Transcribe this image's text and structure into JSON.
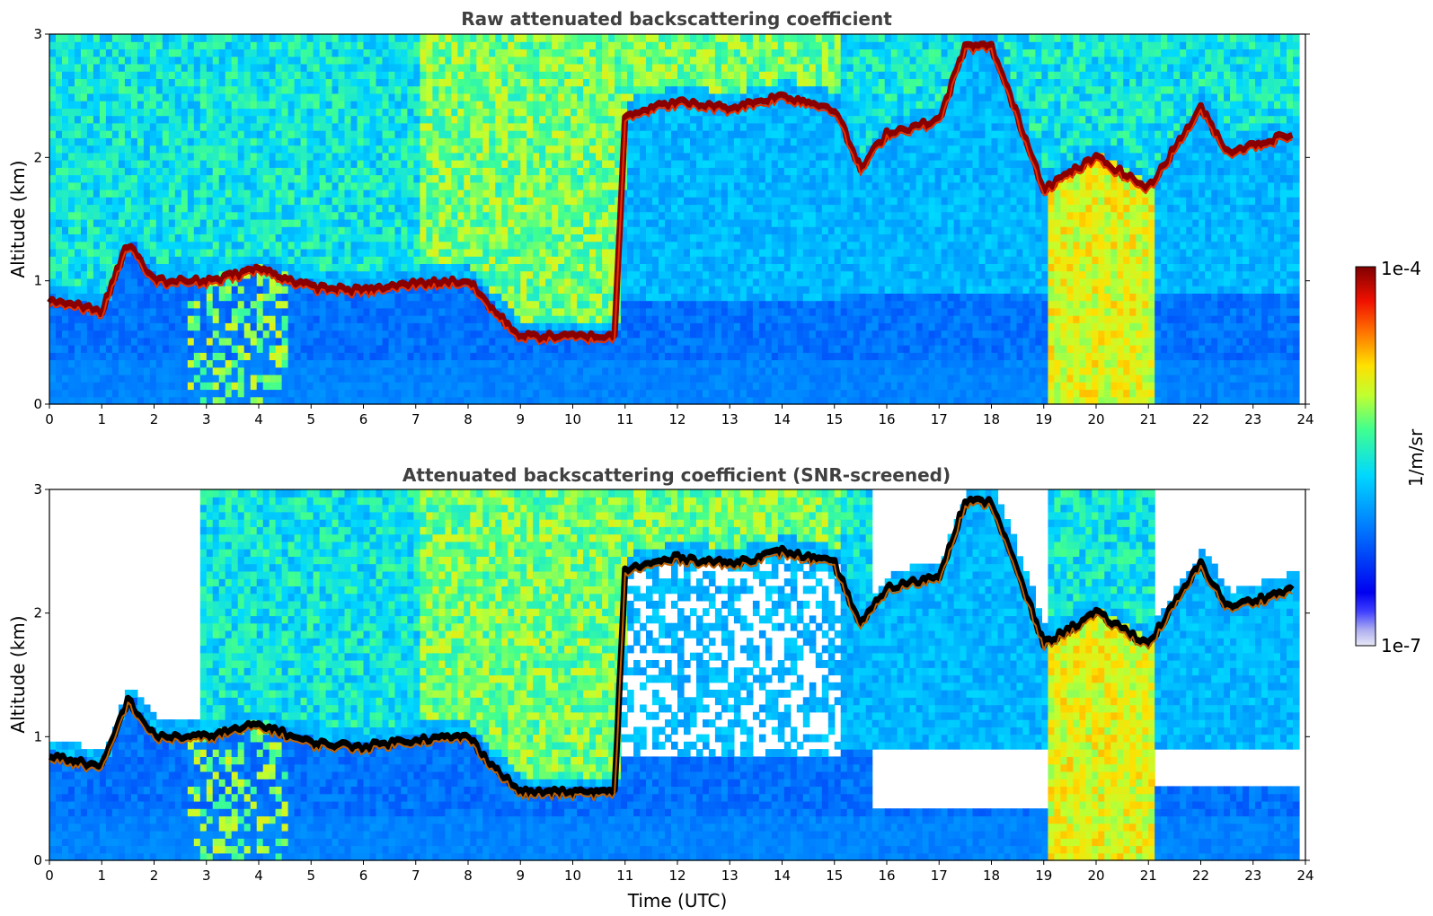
{
  "chart_data": [
    {
      "type": "heatmap",
      "title": "Raw attenuated backscattering coefficient",
      "xlabel": "",
      "ylabel": "Altitude (km)",
      "xlim": [
        0,
        24
      ],
      "ylim": [
        0,
        3
      ],
      "xticks": [
        "0",
        "1",
        "2",
        "3",
        "4",
        "5",
        "6",
        "7",
        "8",
        "9",
        "10",
        "11",
        "12",
        "13",
        "14",
        "15",
        "16",
        "17",
        "18",
        "19",
        "20",
        "21",
        "22",
        "23",
        "24"
      ],
      "yticks": [
        "0",
        "1",
        "2",
        "3"
      ],
      "screened": false,
      "layer_top": {
        "time_utc": [
          0,
          1,
          1.5,
          2,
          3,
          4,
          5,
          6,
          7,
          8,
          8.5,
          9,
          10,
          10.8,
          11,
          12,
          13,
          14,
          15,
          15.5,
          16,
          17,
          17.5,
          18,
          19,
          20,
          21,
          22,
          22.5,
          23,
          23.8
        ],
        "altitude_km": [
          0.85,
          0.75,
          1.3,
          1.0,
          1.0,
          1.1,
          0.95,
          0.92,
          0.98,
          1.0,
          0.75,
          0.55,
          0.55,
          0.55,
          2.35,
          2.45,
          2.4,
          2.5,
          2.4,
          1.9,
          2.2,
          2.3,
          2.9,
          2.9,
          1.75,
          2.0,
          1.75,
          2.4,
          2.05,
          2.1,
          2.2
        ]
      }
    },
    {
      "type": "heatmap",
      "title": "Attenuated backscattering coefficient (SNR-screened)",
      "xlabel": "Time (UTC)",
      "ylabel": "Altitude (km)",
      "xlim": [
        0,
        24
      ],
      "ylim": [
        0,
        3
      ],
      "xticks": [
        "0",
        "1",
        "2",
        "3",
        "4",
        "5",
        "6",
        "7",
        "8",
        "9",
        "10",
        "11",
        "12",
        "13",
        "14",
        "15",
        "16",
        "17",
        "18",
        "19",
        "20",
        "21",
        "22",
        "23",
        "24"
      ],
      "yticks": [
        "0",
        "1",
        "2",
        "3"
      ],
      "screened": true
    }
  ],
  "colorbar": {
    "label": "1/m/sr",
    "max_label": "1e-4",
    "min_label": "1e-7",
    "range": [
      1e-07,
      0.0001
    ],
    "scale": "log",
    "colormap": "jet"
  }
}
